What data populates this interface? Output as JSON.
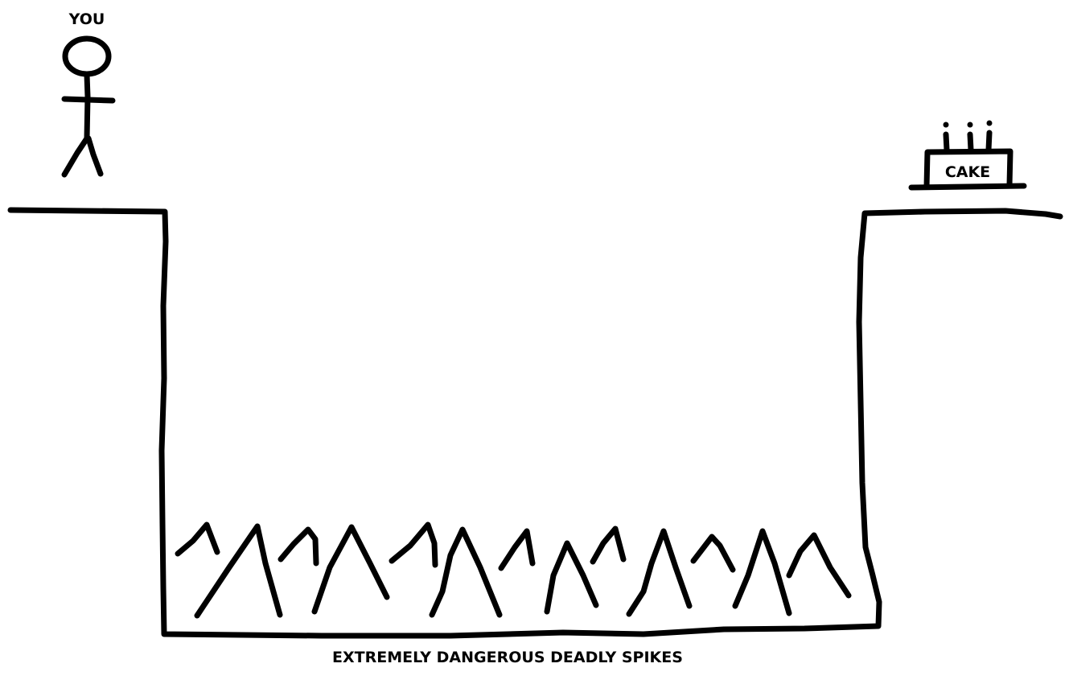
{
  "labels": {
    "player": "YOU",
    "goal": "CAKE",
    "hazard": "EXTREMELY DANGEROUS DEADLY SPIKES"
  },
  "colors": {
    "background": "#ffffff",
    "ink": "#000000"
  }
}
